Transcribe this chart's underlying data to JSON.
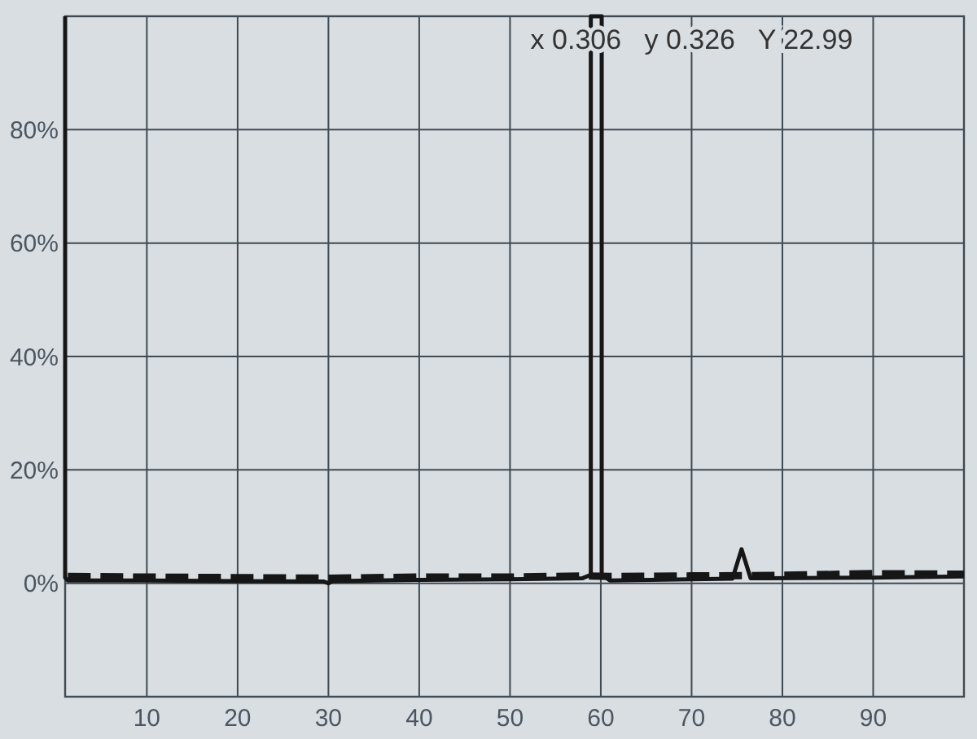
{
  "chart_data": {
    "type": "line",
    "annotations": [
      "x 0.306   y 0.326   Y 22.99"
    ],
    "xlim": [
      1,
      100
    ],
    "xticks": [
      10,
      20,
      30,
      40,
      50,
      60,
      70,
      80,
      90
    ],
    "ylim": [
      -20,
      100
    ],
    "yticks": [
      {
        "value": 0,
        "label": "0%"
      },
      {
        "value": 20,
        "label": "20%"
      },
      {
        "value": 40,
        "label": "40%"
      },
      {
        "value": 60,
        "label": "60%"
      },
      {
        "value": 80,
        "label": "80%"
      }
    ],
    "grid": true,
    "series": [
      {
        "color": "#161616",
        "line_style": "solid",
        "x": [
          1,
          1,
          1.3,
          10,
          20,
          29.5,
          30,
          30.5,
          40,
          50,
          58,
          58.9,
          58.9,
          60.1,
          60.1,
          61,
          70,
          74.5,
          75.5,
          76.5,
          78,
          90,
          100
        ],
        "values": [
          100,
          1,
          0.5,
          0.5,
          0.4,
          0.3,
          0,
          0.4,
          0.6,
          0.7,
          0.9,
          1.5,
          100,
          100,
          1.5,
          0.5,
          0.7,
          0.8,
          6,
          0.9,
          0.9,
          1,
          1.2
        ]
      },
      {
        "color": "#161616",
        "line_style": "dashed",
        "x": [
          1.3,
          10,
          20,
          30,
          40,
          50,
          58.5,
          61,
          70,
          80,
          90,
          100
        ],
        "values": [
          1.2,
          1.1,
          1,
          0.9,
          1.1,
          1.1,
          1.3,
          1.2,
          1.3,
          1.4,
          1.7,
          1.6
        ]
      }
    ]
  }
}
